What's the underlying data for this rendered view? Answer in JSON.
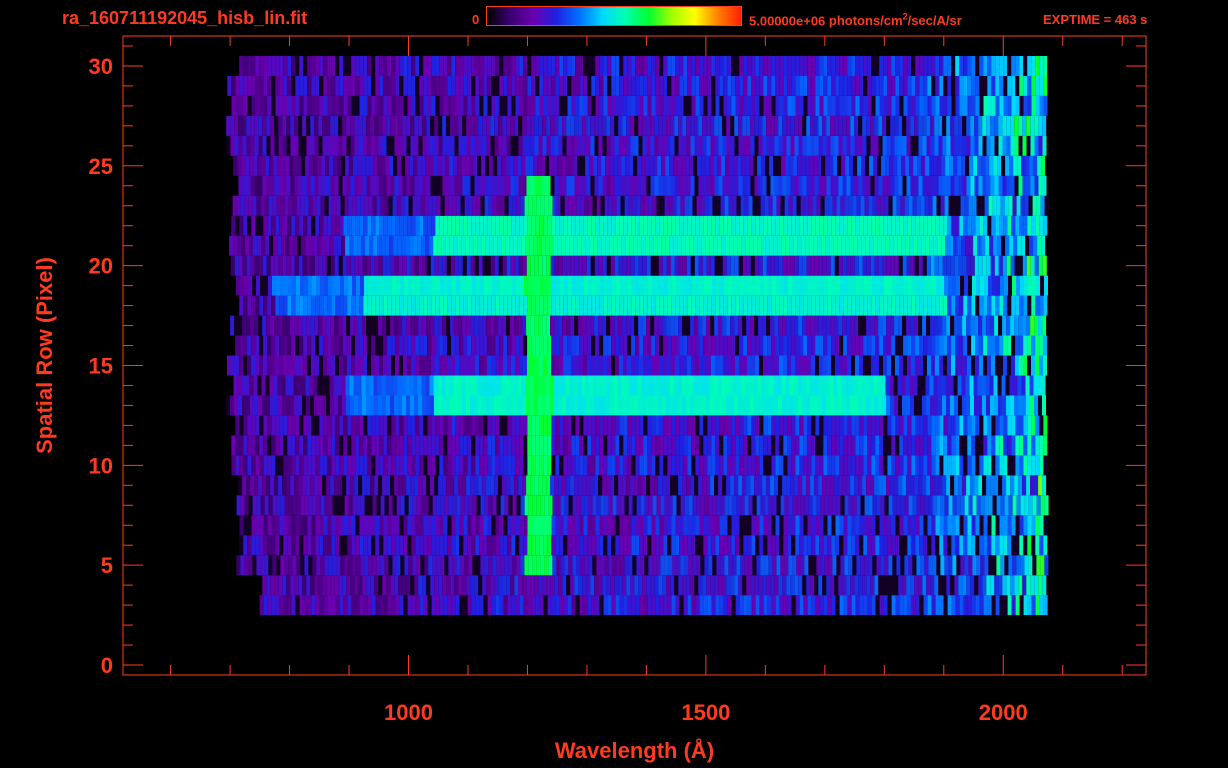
{
  "header": {
    "title": "ra_160711192045_hisb_lin.fit",
    "colorbar_min": "0",
    "colorbar_max_value": "5.00000e+06",
    "colorbar_units_before_sup": "photons/cm",
    "colorbar_units_sup": "2",
    "colorbar_units_after_sup": "/sec/A/sr",
    "exptime": "EXPTIME = 463 s"
  },
  "colors": {
    "axis": "#ff3b1f",
    "background": "#000000",
    "colormap": [
      "#000000",
      "#3a0070",
      "#6a00b0",
      "#2020e0",
      "#0070ff",
      "#00d8ff",
      "#00ffb0",
      "#00ff30",
      "#a0ff00",
      "#ffff00",
      "#ff8000",
      "#ff2000"
    ]
  },
  "chart_data": {
    "type": "heatmap",
    "title": "ra_160711192045_hisb_lin.fit",
    "xlabel": "Wavelength (Å)",
    "ylabel": "Spatial Row (Pixel)",
    "xlim": [
      520,
      2240
    ],
    "ylim": [
      -0.5,
      31.5
    ],
    "x_ticks": [
      1000,
      1500,
      2000
    ],
    "y_ticks": [
      0,
      5,
      10,
      15,
      20,
      25,
      30
    ],
    "colorbar_range": [
      0,
      5000000
    ],
    "data_extent_x": [
      690,
      2070
    ],
    "emission_line_x": 1216,
    "bright_rows": [
      {
        "row": 21.5,
        "x_start": 1040,
        "x_end": 1900,
        "level": 0.5
      },
      {
        "row": 18.5,
        "x_start": 920,
        "x_end": 1900,
        "level": 0.48
      },
      {
        "row": 13.5,
        "x_start": 1040,
        "x_end": 1800,
        "level": 0.48
      }
    ],
    "line_rows": [
      5,
      24
    ],
    "grid": false
  }
}
